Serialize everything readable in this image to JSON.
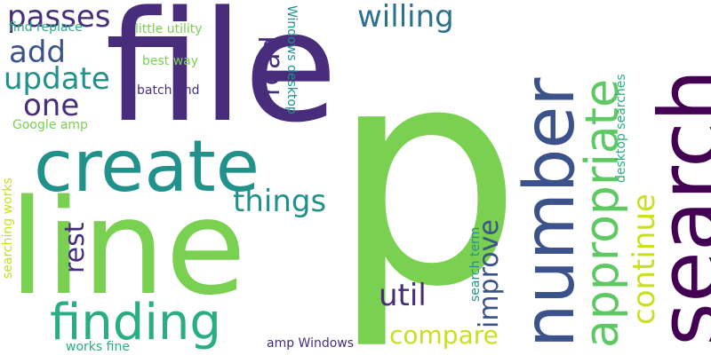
{
  "words": {
    "p": "p",
    "file": "file",
    "line": "line",
    "search": "search",
    "number": "number",
    "create": "create",
    "finding": "finding",
    "appropriate": "appropriate",
    "passes": "passes",
    "willing": "willing",
    "add": "add",
    "update": "update",
    "one": "one",
    "read": "read",
    "things": "things",
    "rest": "rest",
    "improve": "improve",
    "continue": "continue",
    "util": "util",
    "compare": "compare",
    "find_replace": "find replace",
    "little_utility": "little utility",
    "best_way": "best way",
    "batch_find": "batch find",
    "google_amp": "Google amp",
    "windows_desktop": "Windows desktop",
    "desktop_searches": "desktop searches",
    "search_term": "search term",
    "searching_works": "searching works",
    "amp_windows": "amp Windows",
    "works_fine": "works fine"
  },
  "colors": {
    "dark_purple": "#472d7b",
    "deep_purple": "#440154",
    "indigo": "#3b528b",
    "blue": "#2c728e",
    "teal": "#21918c",
    "green_teal": "#28ae80",
    "green": "#5ec962",
    "light_green": "#7ad151",
    "yellow_green": "#addc30",
    "yellow": "#c8e020"
  }
}
